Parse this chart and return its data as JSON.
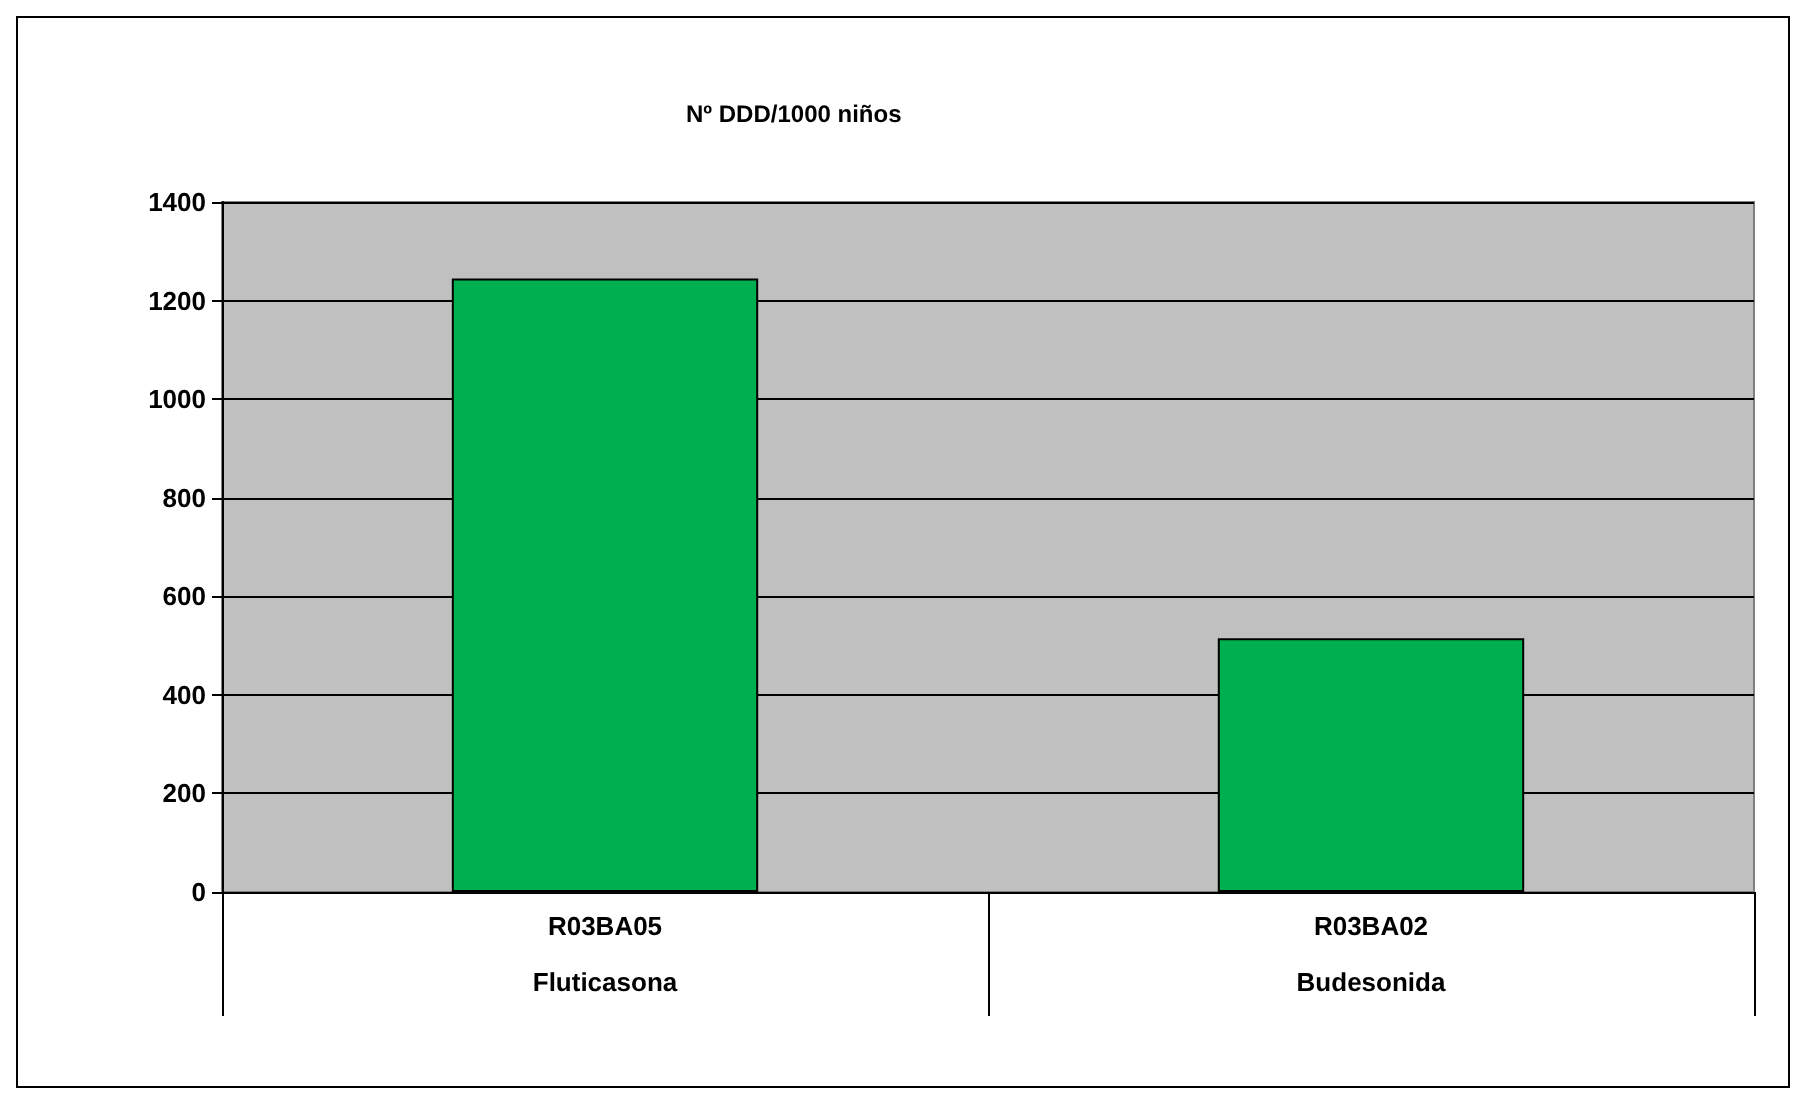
{
  "chart_data": {
    "type": "bar",
    "title": "Nº DDD/1000 niños",
    "categories": [
      "R03BA05\n\nFluticasona",
      "R03BA02\n\nBudesonida"
    ],
    "values": [
      1245,
      515
    ],
    "color": "#00b050",
    "ylim": [
      0,
      1400
    ],
    "yticks": [
      0,
      200,
      400,
      600,
      800,
      1000,
      1200,
      1400
    ],
    "grid": "y"
  }
}
